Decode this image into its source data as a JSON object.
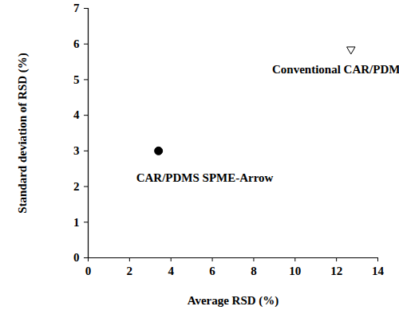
{
  "chart_data": {
    "type": "scatter",
    "x_label": "Average RSD (%)",
    "y_label": "Standard deviation of RSD (%)",
    "series": [
      {
        "name": "CAR/PDMS SPME-Arrow",
        "color": "#000000",
        "marker": "circle",
        "x": [
          3.4
        ],
        "values": [
          3.0
        ]
      },
      {
        "name": "Conventional CAR/PDMS",
        "color": "#000000",
        "marker": "triangle-down-open",
        "x": [
          12.7
        ],
        "values": [
          5.85
        ]
      }
    ],
    "xlim": [
      0,
      14
    ],
    "xticks": [
      0,
      2,
      4,
      6,
      8,
      10,
      12,
      14
    ],
    "ylim": [
      0,
      7
    ],
    "yticks": [
      0,
      1,
      2,
      3,
      4,
      5,
      6,
      7
    ],
    "grid": false
  }
}
